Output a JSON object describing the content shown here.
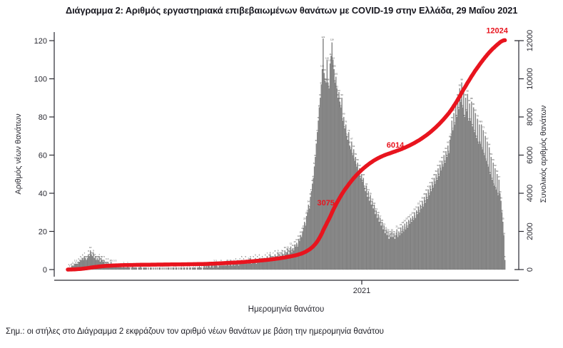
{
  "page": {
    "title": "Διάγραμμα 2: Αριθμός εργαστηριακά επιβεβαιωμένων θανάτων με COVID-19 στην Ελλάδα, 29 Μαΐου 2021",
    "note": "Σημ.: οι στήλες στο Διάγραμμα 2 εκφράζουν τον αριθμό νέων θανάτων με βάση την ημερομηνία θανάτου"
  },
  "chart": {
    "y_left": {
      "title": "Αριθμός νέων θανάτων",
      "ticks": [
        0,
        20,
        40,
        60,
        80,
        100,
        120
      ]
    },
    "y_right": {
      "title": "Συνολικός αριθμός θανάτων",
      "ticks": [
        0,
        2000,
        4000,
        6000,
        8000,
        10000,
        12000
      ]
    },
    "x": {
      "title": "Ημερομηνία θανάτου",
      "tick_labels": [
        "2021"
      ]
    },
    "colors": {
      "bar": "#878787",
      "bar_edge": "#5f5f5f",
      "bar_value_label": "#3f3f3f",
      "line": "#e8141e",
      "annotation": "#e8141e",
      "axis": "#2a2a32",
      "text": "#2a2a32"
    }
  },
  "chart_data": {
    "type": "combo-bar-line",
    "title": "Διάγραμμα 2: Αριθμός εργαστηριακά επιβεβαιωμένων θανάτων με COVID-19 στην Ελλάδα, 29 Μαΐου 2021",
    "xlabel": "Ημερομηνία θανάτου",
    "ylabel_left": "Αριθμός νέων θανάτων",
    "ylabel_right": "Συνολικός αριθμός θανάτων",
    "ylim_left": [
      0,
      120
    ],
    "ylim_right": [
      0,
      12000
    ],
    "x_axis_note": "daily bars from March 2020 to 29 May 2021; only year tick shown",
    "x_tick": {
      "label": "2021",
      "fraction": 0.671
    },
    "grid": false,
    "bar_series": {
      "name": "Αριθμός νέων θανάτων (ανά ημερομηνία θανάτου)",
      "max_value": 121,
      "values": [
        0,
        1,
        1,
        1,
        2,
        2,
        2,
        3,
        3,
        3,
        3,
        4,
        4,
        5,
        5,
        6,
        5,
        7,
        6,
        5,
        6,
        8,
        7,
        10,
        8,
        7,
        9,
        6,
        7,
        5,
        6,
        5,
        7,
        4,
        6,
        5,
        4,
        5,
        3,
        4,
        3,
        4,
        2,
        3,
        4,
        3,
        2,
        3,
        2,
        3,
        2,
        1,
        2,
        1,
        2,
        1,
        1,
        2,
        1,
        1,
        1,
        2,
        1,
        1,
        0,
        1,
        2,
        1,
        1,
        1,
        1,
        0,
        1,
        1,
        2,
        1,
        0,
        1,
        1,
        1,
        1,
        0,
        1,
        0,
        1,
        1,
        0,
        1,
        0,
        1,
        0,
        1,
        0,
        1,
        1,
        0,
        1,
        0,
        1,
        0,
        1,
        0,
        1,
        1,
        0,
        1,
        0,
        1,
        1,
        0,
        1,
        1,
        0,
        1,
        0,
        1,
        1,
        0,
        1,
        1,
        0,
        1,
        1,
        0,
        1,
        1,
        0,
        1,
        1,
        1,
        1,
        0,
        1,
        1,
        2,
        1,
        1,
        0,
        1,
        2,
        1,
        2,
        1,
        2,
        3,
        1,
        2,
        2,
        1,
        3,
        2,
        3,
        2,
        1,
        3,
        2,
        4,
        2,
        3,
        2,
        3,
        2,
        4,
        3,
        2,
        3,
        4,
        2,
        3,
        3,
        2,
        4,
        3,
        3,
        2,
        4,
        3,
        5,
        3,
        4,
        3,
        5,
        4,
        3,
        5,
        4,
        6,
        3,
        4,
        5,
        4,
        6,
        3,
        5,
        4,
        6,
        5,
        4,
        6,
        4,
        5,
        6,
        4,
        7,
        5,
        6,
        8,
        5,
        6,
        7,
        5,
        8,
        6,
        7,
        9,
        6,
        8,
        7,
        9,
        8,
        7,
        10,
        8,
        9,
        11,
        8,
        10,
        12,
        9,
        11,
        10,
        13,
        12,
        14,
        12,
        16,
        15,
        18,
        17,
        20,
        22,
        25,
        23,
        28,
        30,
        34,
        32,
        38,
        41,
        45,
        48,
        54,
        59,
        66,
        72,
        78,
        85,
        90,
        97,
        105,
        121,
        103,
        99,
        98,
        110,
        98,
        95,
        108,
        112,
        119,
        110,
        105,
        98,
        101,
        95,
        90,
        93,
        88,
        85,
        90,
        78,
        80,
        74,
        76,
        70,
        68,
        72,
        65,
        63,
        67,
        60,
        63,
        57,
        59,
        54,
        56,
        50,
        53,
        48,
        50,
        46,
        48,
        43,
        41,
        44,
        38,
        41,
        36,
        39,
        34,
        36,
        32,
        34,
        29,
        31,
        27,
        29,
        25,
        27,
        23,
        25,
        21,
        23,
        19,
        21,
        18,
        20,
        16,
        19,
        17,
        20,
        17,
        19,
        16,
        18,
        21,
        17,
        20,
        18,
        22,
        19,
        23,
        20,
        24,
        21,
        25,
        22,
        26,
        24,
        27,
        25,
        28,
        26,
        30,
        27,
        31,
        29,
        33,
        30,
        34,
        32,
        36,
        33,
        38,
        35,
        40,
        37,
        42,
        39,
        44,
        41,
        46,
        43,
        48,
        45,
        50,
        47,
        53,
        49,
        55,
        52,
        57,
        54,
        60,
        56,
        62,
        59,
        65,
        61,
        68,
        70,
        78,
        73,
        82,
        76,
        86,
        80,
        90,
        84,
        95,
        88,
        98,
        85,
        93,
        80,
        90,
        83,
        92,
        78,
        87,
        78,
        88,
        75,
        85,
        72,
        82,
        69,
        79,
        66,
        76,
        66,
        76,
        63,
        73,
        60,
        70,
        57,
        67,
        54,
        64,
        50,
        59,
        47,
        56,
        44,
        53,
        42,
        50,
        39,
        47,
        40,
        36,
        30,
        25,
        18,
        5
      ]
    },
    "line_series": {
      "name": "Συνολικός αριθμός θανάτων",
      "derivation": "cumulative sum of daily bar values",
      "final_value": 12024,
      "annotated_values": [
        3075,
        6014,
        12024
      ]
    },
    "annotations": [
      {
        "label": "3075",
        "value": 3075
      },
      {
        "label": "6014",
        "value": 6014
      },
      {
        "label": "12024",
        "value": 12024
      }
    ]
  }
}
